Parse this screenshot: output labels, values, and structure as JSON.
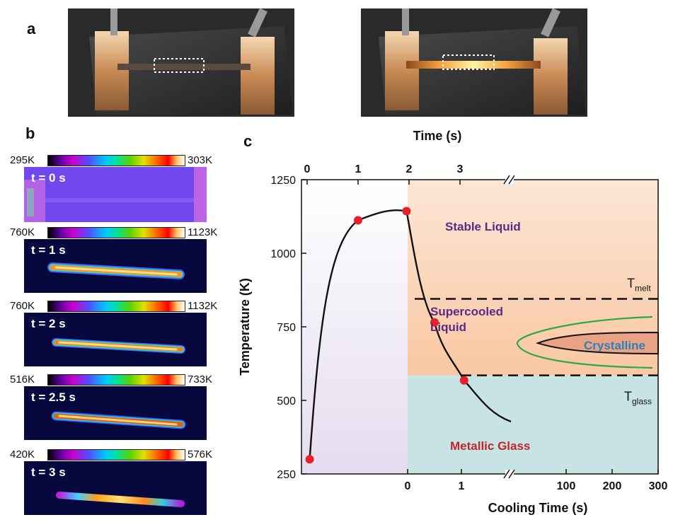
{
  "panels": {
    "a": "a",
    "b": "b",
    "c": "c"
  },
  "thermal_frames": [
    {
      "time": "t = 0 s",
      "tmin": "295K",
      "tmax": "303K"
    },
    {
      "time": "t = 1 s",
      "tmin": "760K",
      "tmax": "1123K"
    },
    {
      "time": "t = 2 s",
      "tmin": "760K",
      "tmax": "1132K"
    },
    {
      "time": "t = 2.5 s",
      "tmin": "516K",
      "tmax": "733K"
    },
    {
      "time": "t = 3 s",
      "tmin": "420K",
      "tmax": "576K"
    }
  ],
  "chart_data": {
    "type": "line",
    "top_axis_label": "Time (s)",
    "top_ticks": [
      "0",
      "1",
      "2",
      "3"
    ],
    "bottom_axis_label": "Cooling Time (s)",
    "bottom_ticks_linear": [
      "0",
      "1"
    ],
    "bottom_ticks_right": [
      "100",
      "200",
      "300"
    ],
    "ylabel": "Temperature (K)",
    "ylim": [
      250,
      1250
    ],
    "yticks": [
      "250",
      "500",
      "750",
      "1000",
      "1250"
    ],
    "region_labels": {
      "stable_liquid": "Stable Liquid",
      "supercooled": [
        "Supercooled",
        "Liquid"
      ],
      "crystalline": "Crystalline",
      "metallic_glass": "Metallic Glass"
    },
    "t_melt": {
      "value": 845,
      "label": "T",
      "sub": "melt"
    },
    "t_glass": {
      "value": 585,
      "label": "T",
      "sub": "glass"
    },
    "heating_points": [
      {
        "t": 0.05,
        "T": 300
      },
      {
        "t": 1.0,
        "T": 1112
      },
      {
        "t": 1.95,
        "T": 1143
      }
    ],
    "cooling_points": [
      {
        "t": 0.5,
        "T": 765
      },
      {
        "t": 1.05,
        "T": 568
      }
    ],
    "colors": {
      "marker": "#e8202a",
      "liquid_fill": "#fbcfa8",
      "glass_fill": "#c7e3e3",
      "heating_fill": "#e9e4f2",
      "crystalline_fill": "#e9a283",
      "c_curve": "#2ba84a",
      "region_purple": "#5b2a86",
      "region_red": "#c0262c",
      "crystalline_text": "#2f7fbf"
    }
  }
}
